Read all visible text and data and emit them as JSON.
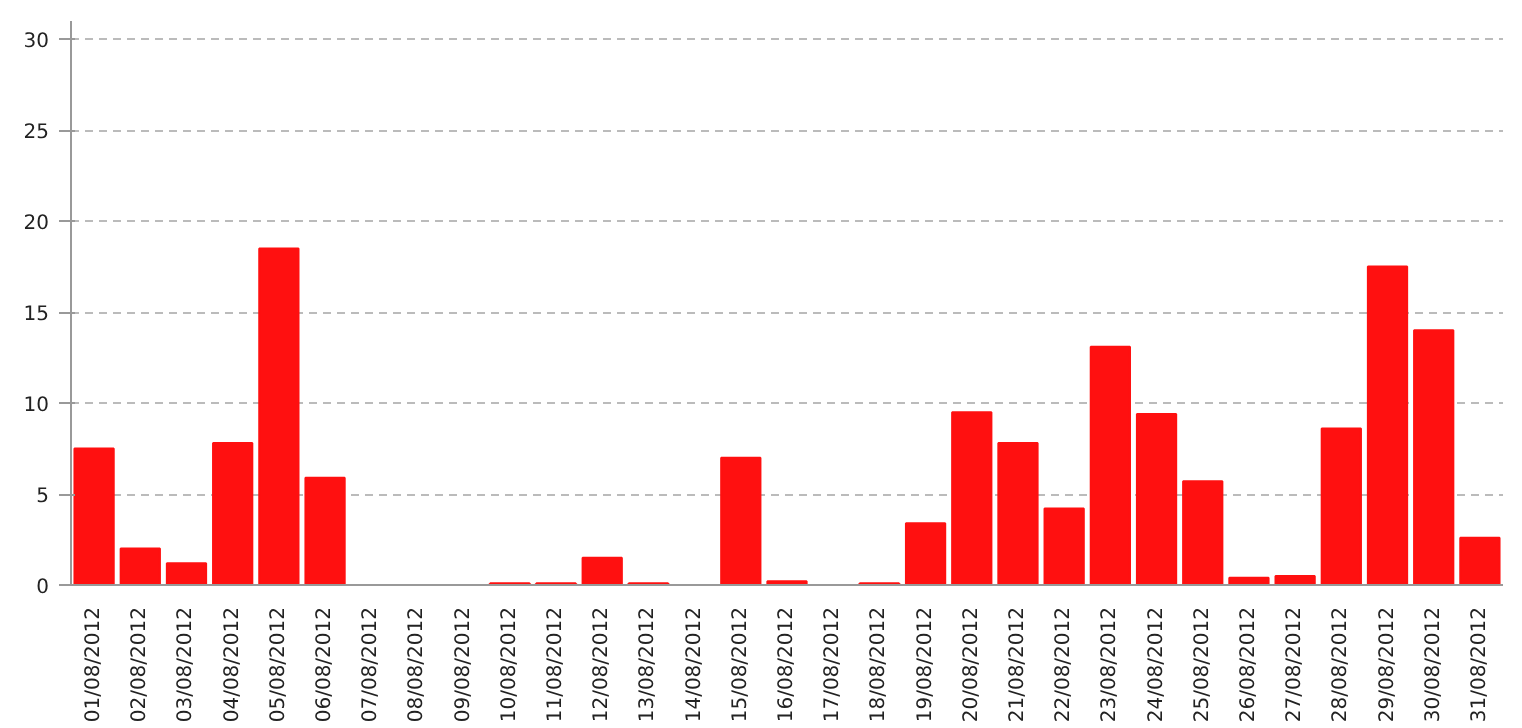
{
  "chart_data": {
    "type": "bar",
    "categories": [
      "01/08/2012",
      "02/08/2012",
      "03/08/2012",
      "04/08/2012",
      "05/08/2012",
      "06/08/2012",
      "07/08/2012",
      "08/08/2012",
      "09/08/2012",
      "10/08/2012",
      "11/08/2012",
      "12/08/2012",
      "13/08/2012",
      "14/08/2012",
      "15/08/2012",
      "16/08/2012",
      "17/08/2012",
      "18/08/2012",
      "19/08/2012",
      "20/08/2012",
      "21/08/2012",
      "22/08/2012",
      "23/08/2012",
      "24/08/2012",
      "25/08/2012",
      "26/08/2012",
      "27/08/2012",
      "28/08/2012",
      "29/08/2012",
      "30/08/2012",
      "31/08/2012"
    ],
    "values": [
      7.5,
      2.0,
      1.2,
      7.8,
      18.5,
      5.9,
      0,
      0,
      0,
      0.1,
      0.1,
      1.5,
      0.1,
      0,
      7.0,
      0.2,
      0,
      0.1,
      3.4,
      9.5,
      7.8,
      4.2,
      13.1,
      9.4,
      5.7,
      0.4,
      0.5,
      8.6,
      17.5,
      14.0,
      2.6
    ],
    "color": "#ff1010",
    "ylim": [
      0,
      31
    ],
    "yticks": [
      0,
      5,
      10,
      15,
      20,
      25,
      30
    ],
    "grid": "y"
  }
}
